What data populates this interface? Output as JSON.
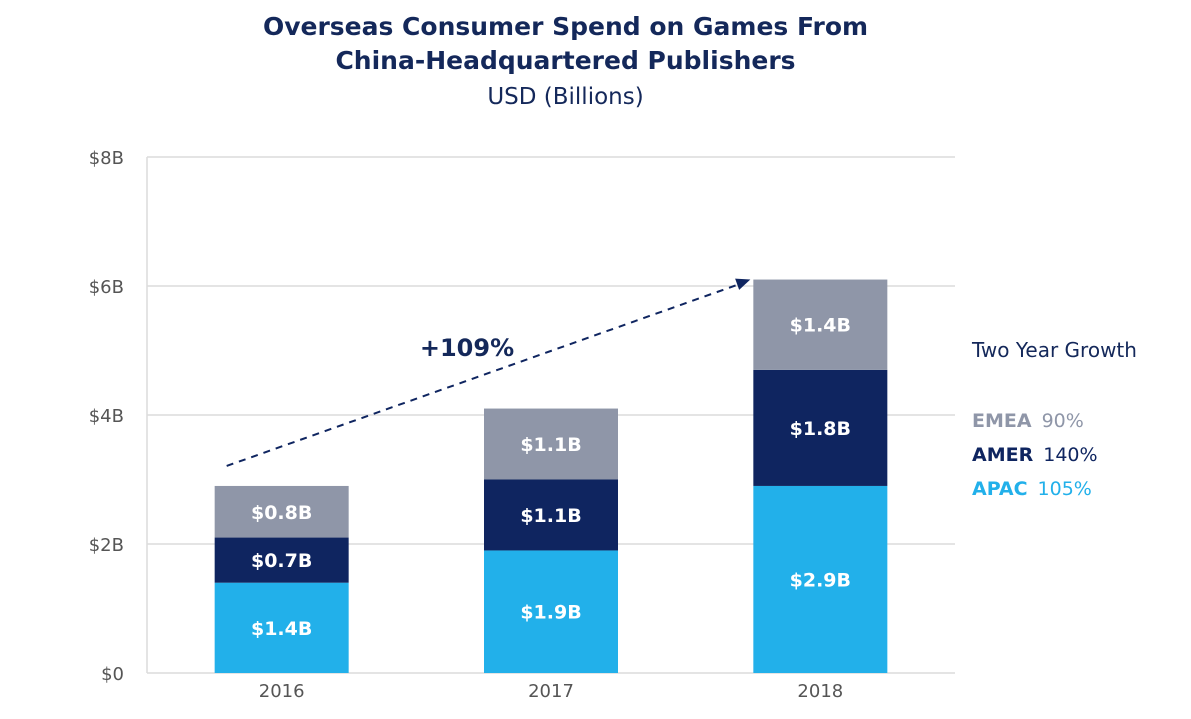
{
  "chart_data": {
    "type": "bar",
    "stacked": true,
    "title_lines": [
      "Overseas Consumer Spend on Games From",
      "China-Headquartered Publishers"
    ],
    "subtitle": "USD (Billions)",
    "categories": [
      "2016",
      "2017",
      "2018"
    ],
    "y_ticks": [
      "$0",
      "$2B",
      "$4B",
      "$6B",
      "$8B"
    ],
    "ylim": [
      0,
      8
    ],
    "grid": true,
    "series": [
      {
        "name": "APAC",
        "values": [
          1.4,
          1.9,
          2.9
        ],
        "labels": [
          "$1.4B",
          "$1.9B",
          "$2.9B"
        ],
        "color": "#22b0ea"
      },
      {
        "name": "AMER",
        "values": [
          0.7,
          1.1,
          1.8
        ],
        "labels": [
          "$0.7B",
          "$1.1B",
          "$1.8B"
        ],
        "color": "#0f2560"
      },
      {
        "name": "EMEA",
        "values": [
          0.8,
          1.1,
          1.4
        ],
        "labels": [
          "$0.8B",
          "$1.1B",
          "$1.4B"
        ],
        "color": "#8f96a8"
      }
    ],
    "annotation": "+109%",
    "growth_panel": {
      "title": "Two Year Growth",
      "items": [
        {
          "label": "EMEA",
          "value": "90%",
          "color": "#8f96a8"
        },
        {
          "label": "AMER",
          "value": "140%",
          "color": "#0f2560"
        },
        {
          "label": "APAC",
          "value": "105%",
          "color": "#22b0ea"
        }
      ]
    }
  }
}
